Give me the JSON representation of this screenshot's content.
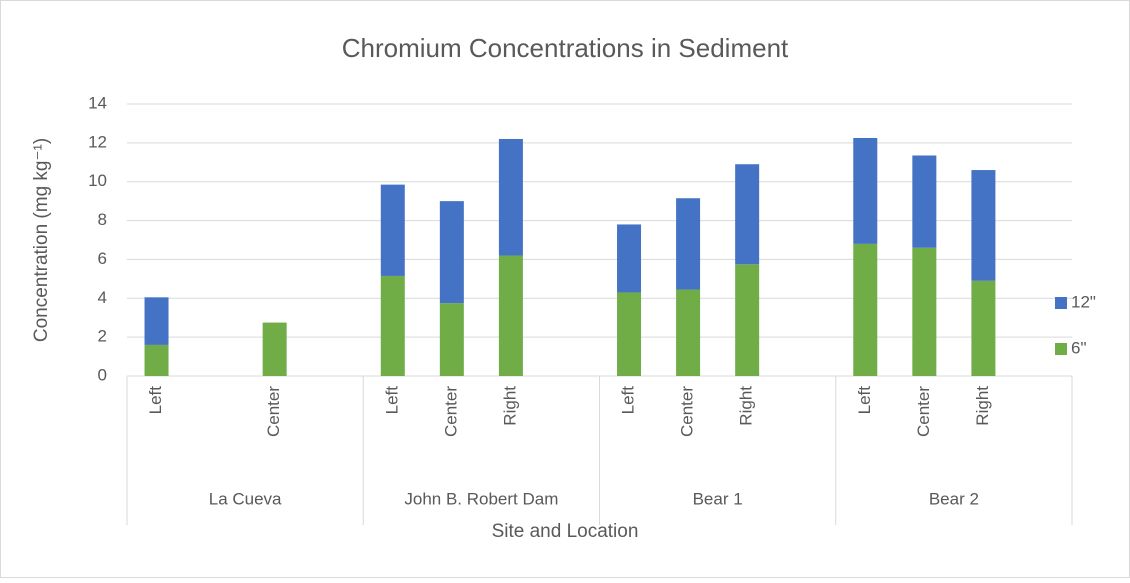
{
  "chart_data": {
    "type": "stacked_bar",
    "title": "Chromium Concentrations in Sediment",
    "y_label": "Concentration (mg kg⁻¹)",
    "x_label": "Site and Location",
    "groups": [
      "La Cueva",
      "John B. Robert Dam",
      "Bear 1",
      "Bear 2"
    ],
    "categories": [
      "Left",
      null,
      "Center",
      null,
      "Left",
      "Center",
      "Right",
      null,
      "Left",
      "Center",
      "Right",
      null,
      "Left",
      "Center",
      "Right",
      null
    ],
    "series": [
      {
        "name": "6\"",
        "color": "#70ad47",
        "values": [
          1.6,
          null,
          2.75,
          null,
          5.15,
          3.75,
          6.2,
          null,
          4.3,
          4.45,
          5.75,
          null,
          6.8,
          6.6,
          4.9,
          null
        ]
      },
      {
        "name": "12\"",
        "color": "#4472c4",
        "values": [
          2.45,
          null,
          null,
          null,
          4.7,
          5.25,
          6.0,
          null,
          3.5,
          4.7,
          5.15,
          null,
          5.45,
          4.75,
          5.7,
          null
        ]
      }
    ],
    "ylim": [
      0,
      14
    ],
    "yticks": [
      0,
      2,
      4,
      6,
      8,
      10,
      12,
      14
    ],
    "grid": true,
    "legend": "right"
  }
}
